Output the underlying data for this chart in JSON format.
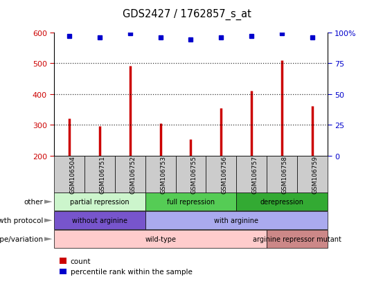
{
  "title": "GDS2427 / 1762857_s_at",
  "samples": [
    "GSM106504",
    "GSM106751",
    "GSM106752",
    "GSM106753",
    "GSM106755",
    "GSM106756",
    "GSM106757",
    "GSM106758",
    "GSM106759"
  ],
  "counts": [
    320,
    295,
    492,
    305,
    252,
    355,
    410,
    510,
    362
  ],
  "percentile_ranks": [
    97,
    96,
    99,
    96,
    94,
    96,
    97,
    99,
    96
  ],
  "ymin": 200,
  "ymax": 600,
  "yticks": [
    200,
    300,
    400,
    500,
    600
  ],
  "y2min": 0,
  "y2max": 100,
  "y2ticks": [
    0,
    25,
    50,
    75,
    100
  ],
  "bar_color": "#cc0000",
  "dot_color": "#0000cc",
  "annotation_rows": [
    {
      "label": "other",
      "segments": [
        {
          "text": "partial repression",
          "start": 0,
          "end": 3,
          "color": "#ccf5cc"
        },
        {
          "text": "full repression",
          "start": 3,
          "end": 6,
          "color": "#55cc55"
        },
        {
          "text": "derepression",
          "start": 6,
          "end": 9,
          "color": "#33aa33"
        }
      ]
    },
    {
      "label": "growth protocol",
      "segments": [
        {
          "text": "without arginine",
          "start": 0,
          "end": 3,
          "color": "#7755cc"
        },
        {
          "text": "with arginine",
          "start": 3,
          "end": 9,
          "color": "#aaaaee"
        }
      ]
    },
    {
      "label": "genotype/variation",
      "segments": [
        {
          "text": "wild-type",
          "start": 0,
          "end": 7,
          "color": "#ffcccc"
        },
        {
          "text": "arginine repressor mutant",
          "start": 7,
          "end": 9,
          "color": "#cc8888"
        }
      ]
    }
  ],
  "legend_items": [
    {
      "color": "#cc0000",
      "label": "count"
    },
    {
      "color": "#0000cc",
      "label": "percentile rank within the sample"
    }
  ],
  "arrow_color": "#888888",
  "gray_color": "#cccccc",
  "tick_box_color": "#cccccc"
}
